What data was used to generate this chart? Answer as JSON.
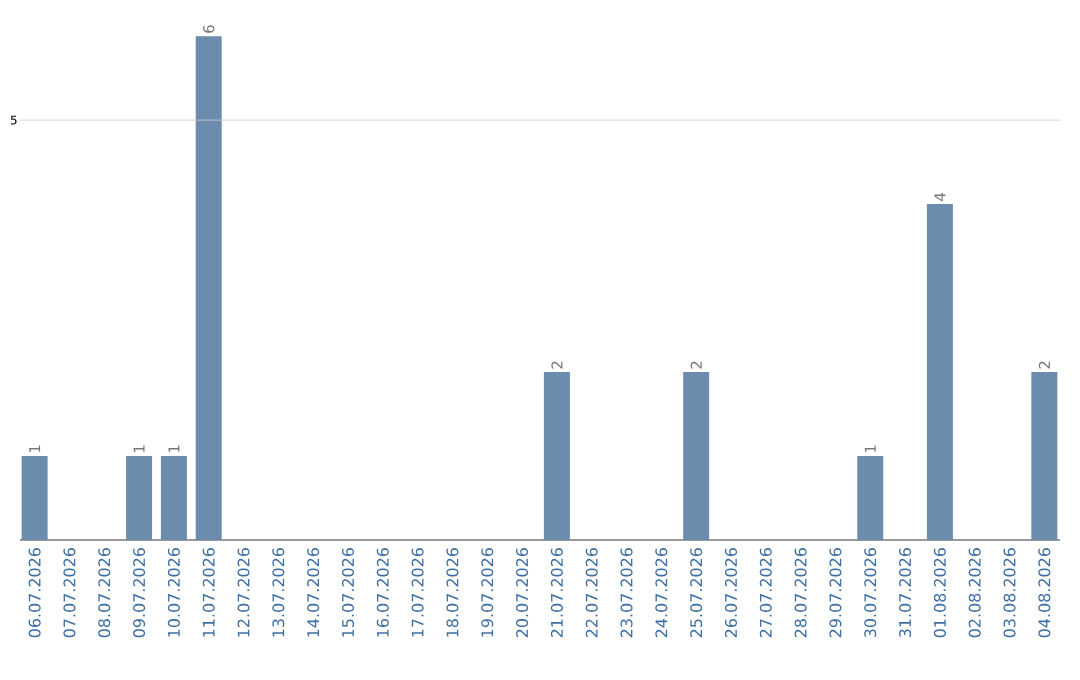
{
  "chart_data": {
    "type": "bar",
    "categories": [
      "06.07.2026",
      "07.07.2026",
      "08.07.2026",
      "09.07.2026",
      "10.07.2026",
      "11.07.2026",
      "12.07.2026",
      "13.07.2026",
      "14.07.2026",
      "15.07.2026",
      "16.07.2026",
      "17.07.2026",
      "18.07.2026",
      "19.07.2026",
      "20.07.2026",
      "21.07.2026",
      "22.07.2026",
      "23.07.2026",
      "24.07.2026",
      "25.07.2026",
      "26.07.2026",
      "27.07.2026",
      "28.07.2026",
      "29.07.2026",
      "30.07.2026",
      "31.07.2026",
      "01.08.2026",
      "02.08.2026",
      "03.08.2026",
      "04.08.2026"
    ],
    "values": [
      1,
      0,
      0,
      1,
      1,
      6,
      0,
      0,
      0,
      0,
      0,
      0,
      0,
      0,
      0,
      2,
      0,
      0,
      0,
      2,
      0,
      0,
      0,
      0,
      1,
      0,
      4,
      0,
      0,
      2
    ],
    "value_labels": [
      "1",
      null,
      null,
      "1",
      "1",
      "6",
      null,
      null,
      null,
      null,
      null,
      null,
      null,
      null,
      null,
      "2",
      null,
      null,
      null,
      "2",
      null,
      null,
      null,
      null,
      "1",
      null,
      "4",
      null,
      null,
      "2"
    ],
    "color": "#6b8cac",
    "ref_lines": [
      {
        "axis": "y",
        "value": 5,
        "label": "5",
        "color": "#cccccc"
      }
    ]
  }
}
